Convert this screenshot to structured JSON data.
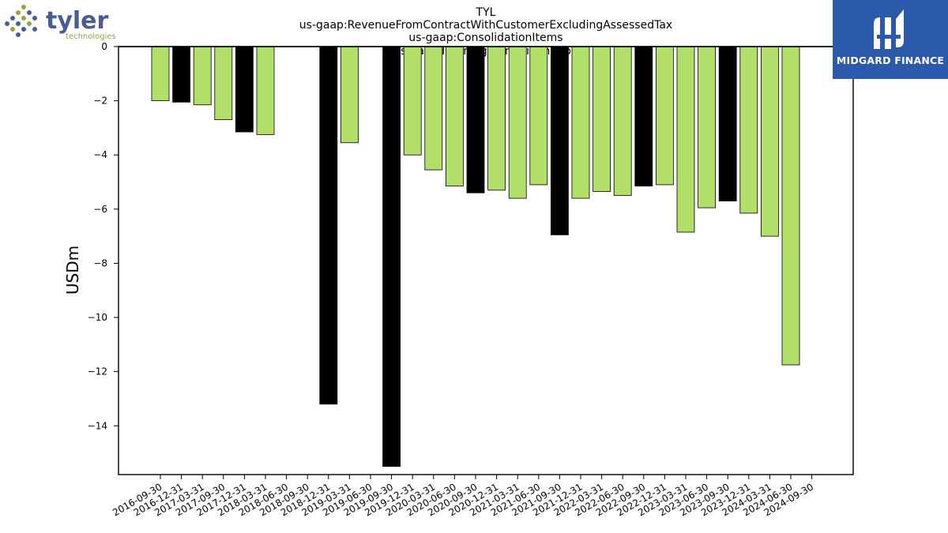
{
  "logos": {
    "left_name": "tyler",
    "left_sub": "technologies",
    "right_name": "MIDGARD FINANCE"
  },
  "colors": {
    "positive_bar": "#b2df6a",
    "highlight_bar": "#000000",
    "logo_blue": "#4a5d93",
    "logo_olive": "#9aa34a",
    "corner_bg": "#2c5aaa"
  },
  "chart_data": {
    "type": "bar",
    "title_lines": [
      "TYL",
      "us-gaap:RevenueFromContractWithCustomerExcludingAssessedTax",
      "us-gaap:ConsolidationItems",
      "us-gaap:IntersegmentElimination"
    ],
    "xlabel": "",
    "ylabel": "USDm",
    "ylim": [
      -15.8,
      0
    ],
    "yticks": [
      0,
      -2,
      -4,
      -6,
      -8,
      -10,
      -12,
      -14
    ],
    "ytick_labels": [
      "0",
      "−2",
      "−4",
      "−6",
      "−8",
      "−10",
      "−12",
      "−14"
    ],
    "grid": false,
    "categories": [
      "2016-09-30",
      "2016-12-31",
      "2017-03-31",
      "2017-09-30",
      "2017-12-31",
      "2018-03-31",
      "2018-06-30",
      "2018-09-30",
      "2018-12-31",
      "2019-03-31",
      "2019-06-30",
      "2019-09-30",
      "2019-12-31",
      "2020-03-31",
      "2020-06-30",
      "2020-09-30",
      "2020-12-31",
      "2021-03-31",
      "2021-06-30",
      "2021-09-30",
      "2021-12-31",
      "2022-03-31",
      "2022-06-30",
      "2022-09-30",
      "2022-12-31",
      "2023-03-31",
      "2023-06-30",
      "2023-09-30",
      "2023-12-31",
      "2024-03-31",
      "2024-06-30",
      "2024-09-30"
    ],
    "values": [
      -2.0,
      -2.05,
      -2.15,
      -2.7,
      -3.15,
      -3.25,
      0,
      0,
      -13.2,
      -3.55,
      0,
      -15.5,
      -4.0,
      -4.55,
      -5.15,
      -5.4,
      -5.3,
      -5.6,
      -5.1,
      -6.95,
      -5.6,
      -5.35,
      -5.5,
      -5.15,
      -5.1,
      -6.85,
      -5.95,
      -5.7,
      -6.15,
      -7.0,
      -11.75,
      0
    ],
    "highlight": [
      false,
      true,
      false,
      false,
      true,
      false,
      false,
      false,
      true,
      false,
      false,
      true,
      false,
      false,
      false,
      true,
      false,
      false,
      false,
      true,
      false,
      false,
      false,
      true,
      false,
      false,
      false,
      true,
      false,
      false,
      false,
      false
    ]
  }
}
